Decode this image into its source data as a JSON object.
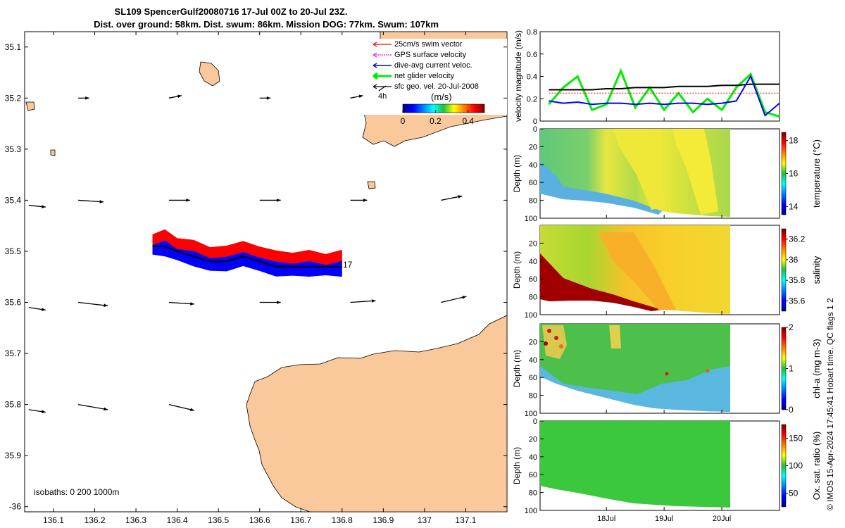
{
  "title": {
    "line1": "SL109 SpencerGulf20080716 17-Jul 00Z to 20-Jul 23Z.",
    "line2": "Dist. over ground: 58km. Dist. swum: 86km. Mission DOG: 77km. Swum: 107km"
  },
  "colors": {
    "land": "#f9c89b",
    "swim": "#ff0000",
    "gps": "#ff00ff",
    "dive_avg": "#0000ff",
    "net": "#00ee00",
    "sfc": "#000000"
  },
  "chart_data": [
    {
      "type": "map",
      "name": "glider-track-map",
      "xlim": [
        136.03,
        137.2
      ],
      "ylim": [
        -36.01,
        -35.07
      ],
      "x_ticks": [
        "136.1",
        "136.2",
        "136.3",
        "136.4",
        "136.5",
        "136.6",
        "136.7",
        "136.8",
        "136.9",
        "137",
        "137.1"
      ],
      "x_tick_values": [
        136.1,
        136.2,
        136.3,
        136.4,
        136.5,
        136.6,
        136.7,
        136.8,
        136.9,
        137.0,
        137.1
      ],
      "y_ticks": [
        "35.1",
        "35.2",
        "35.3",
        "35.4",
        "35.5",
        "35.6",
        "35.7",
        "35.8",
        "35.9",
        "-36"
      ],
      "y_tick_values": [
        -35.1,
        -35.2,
        -35.3,
        -35.4,
        -35.5,
        -35.6,
        -35.7,
        -35.8,
        -35.9,
        -36.0
      ],
      "legend": [
        {
          "label": "25cm/s swim vector",
          "color": "#ff0000"
        },
        {
          "label": "GPS surface velocity",
          "color": "#ff00ff"
        },
        {
          "label": "dive-avg current veloc.",
          "color": "#0000ff"
        },
        {
          "label": "net glider velocity",
          "color": "#00ee00"
        },
        {
          "label": "sfc geo. vel. 20-Jul-2008",
          "color": "#000000"
        }
      ],
      "legend_extra": "4h",
      "colorbar": {
        "label": "(m/s)",
        "range": [
          0,
          0.5
        ],
        "ticks": [
          "0",
          "0.2",
          "0.4"
        ],
        "tick_values": [
          0,
          0.2,
          0.4
        ]
      },
      "track_end_label": "17",
      "isobaths_text": "isobaths: 0   200  1000m",
      "track": {
        "lon": [
          136.34,
          136.37,
          136.4,
          136.44,
          136.48,
          136.52,
          136.56,
          136.6,
          136.64,
          136.68,
          136.72,
          136.76,
          136.8
        ],
        "lat": [
          -35.49,
          -35.49,
          -35.5,
          -35.51,
          -35.52,
          -35.52,
          -35.51,
          -35.52,
          -35.53,
          -35.53,
          -35.53,
          -35.53,
          -35.53
        ]
      },
      "sfc_vectors": [
        {
          "lon": 136.04,
          "lat": -35.41,
          "u": 0.2,
          "v": -0.02
        },
        {
          "lon": 136.04,
          "lat": -35.61,
          "u": 0.2,
          "v": -0.03
        },
        {
          "lon": 136.04,
          "lat": -35.81,
          "u": 0.2,
          "v": -0.03
        },
        {
          "lon": 136.16,
          "lat": -35.2,
          "u": 0.13,
          "v": 0.0
        },
        {
          "lon": 136.16,
          "lat": -35.4,
          "u": 0.3,
          "v": -0.02
        },
        {
          "lon": 136.16,
          "lat": -35.6,
          "u": 0.35,
          "v": -0.04
        },
        {
          "lon": 136.16,
          "lat": -35.8,
          "u": 0.35,
          "v": -0.06
        },
        {
          "lon": 136.38,
          "lat": -35.2,
          "u": 0.15,
          "v": 0.03
        },
        {
          "lon": 136.38,
          "lat": -35.4,
          "u": 0.25,
          "v": 0.0
        },
        {
          "lon": 136.38,
          "lat": -35.6,
          "u": 0.3,
          "v": -0.02
        },
        {
          "lon": 136.38,
          "lat": -35.8,
          "u": 0.3,
          "v": -0.07
        },
        {
          "lon": 136.6,
          "lat": -35.2,
          "u": 0.13,
          "v": 0.0
        },
        {
          "lon": 136.6,
          "lat": -35.4,
          "u": 0.25,
          "v": 0.0
        },
        {
          "lon": 136.6,
          "lat": -35.6,
          "u": 0.25,
          "v": 0.0
        },
        {
          "lon": 136.82,
          "lat": -35.2,
          "u": 0.15,
          "v": 0.03
        },
        {
          "lon": 136.82,
          "lat": -35.4,
          "u": 0.2,
          "v": 0.0
        },
        {
          "lon": 136.82,
          "lat": -35.6,
          "u": 0.3,
          "v": 0.02
        },
        {
          "lon": 137.04,
          "lat": -35.4,
          "u": 0.25,
          "v": 0.05
        },
        {
          "lon": 137.04,
          "lat": -35.6,
          "u": 0.3,
          "v": 0.07
        }
      ]
    },
    {
      "type": "line",
      "name": "velocity-magnitude",
      "ylabel": "velocity magnitude (m/s)",
      "ylim": [
        0,
        0.8
      ],
      "y_ticks": [
        "0",
        "0.2",
        "0.4",
        "0.6",
        "0.8"
      ],
      "y_tick_values": [
        0,
        0.2,
        0.4,
        0.6,
        0.8
      ],
      "x": [
        0,
        0.25,
        0.5,
        0.75,
        1.0,
        1.25,
        1.5,
        1.75,
        2.0,
        2.25,
        2.5,
        2.75,
        3.0,
        3.25,
        3.5,
        3.75,
        4.0
      ],
      "series": [
        {
          "name": "net glider velocity",
          "color": "#00ee00",
          "values": [
            0.15,
            0.3,
            0.4,
            0.1,
            0.15,
            0.45,
            0.12,
            0.3,
            0.1,
            0.25,
            0.08,
            0.2,
            0.1,
            0.3,
            0.42,
            0.08,
            0.04
          ]
        },
        {
          "name": "sfc geo. vel.",
          "color": "#000000",
          "values": [
            0.28,
            0.28,
            0.28,
            0.28,
            0.29,
            0.29,
            0.3,
            0.3,
            0.3,
            0.31,
            0.31,
            0.31,
            0.32,
            0.32,
            0.33,
            0.33,
            0.33
          ]
        },
        {
          "name": "swim",
          "color": "#ff0000",
          "values": [
            0.25,
            0.25,
            0.25,
            0.25,
            0.25,
            0.25,
            0.25,
            0.25,
            0.25,
            0.25,
            0.25,
            0.25,
            0.25,
            0.25,
            0.25,
            0.25,
            0.25
          ]
        },
        {
          "name": "dive-avg current",
          "color": "#0000ff",
          "values": [
            0.18,
            0.16,
            0.17,
            0.15,
            0.16,
            0.16,
            0.15,
            0.16,
            0.15,
            0.16,
            0.16,
            0.15,
            0.16,
            0.18,
            0.4,
            0.05,
            0.16
          ]
        }
      ]
    },
    {
      "type": "heatmap",
      "name": "temperature",
      "ylabel": "Depth (m)",
      "cbar_label": "temperature (°C)",
      "cbar_range": [
        13.5,
        18.5
      ],
      "cbar_ticks": [
        "14",
        "16",
        "18"
      ],
      "cbar_tick_values": [
        14,
        16,
        18
      ],
      "y_ticks": [
        "0",
        "20",
        "40",
        "60",
        "80",
        "100"
      ],
      "y_tick_values": [
        0,
        20,
        40,
        60,
        80,
        100
      ],
      "palette": "jet"
    },
    {
      "type": "heatmap",
      "name": "salinity",
      "ylabel": "Depth (m)",
      "cbar_label": "salinity",
      "cbar_range": [
        35.5,
        36.3
      ],
      "cbar_ticks": [
        "35.6",
        "35.8",
        "36",
        "36.2"
      ],
      "cbar_tick_values": [
        35.6,
        35.8,
        36.0,
        36.2
      ],
      "y_ticks": [
        "20",
        "40",
        "60",
        "80",
        "100"
      ],
      "y_tick_values": [
        20,
        40,
        60,
        80,
        100
      ],
      "palette": "jet"
    },
    {
      "type": "heatmap",
      "name": "chl-a",
      "ylabel": "Depth (m)",
      "cbar_label": "chl-a (mg m-3)",
      "cbar_range": [
        0,
        2
      ],
      "cbar_ticks": [
        "0",
        "1",
        "2"
      ],
      "cbar_tick_values": [
        0,
        1,
        2
      ],
      "y_ticks": [
        "20",
        "40",
        "60",
        "80",
        "100"
      ],
      "y_tick_values": [
        20,
        40,
        60,
        80,
        100
      ],
      "palette": "jet"
    },
    {
      "type": "heatmap",
      "name": "oxygen-saturation",
      "ylabel": "Depth (m)",
      "cbar_label": "Ox. sat. ratio (%)",
      "cbar_range": [
        25,
        175
      ],
      "cbar_ticks": [
        "50",
        "100",
        "150"
      ],
      "cbar_tick_values": [
        50,
        100,
        150
      ],
      "y_ticks": [
        "0",
        "20",
        "40",
        "60",
        "80",
        "100"
      ],
      "y_tick_values": [
        0,
        20,
        40,
        60,
        80,
        100
      ],
      "x_ticks": [
        "18Jul",
        "19Jul",
        "20Jul"
      ],
      "x_tick_values": [
        1,
        2,
        3
      ],
      "xlim": [
        -0.15,
        4.0
      ],
      "palette": "jet"
    }
  ],
  "footer": "© IMOS 15-Apr-2024 17:45:41 Hobart time. QC flags 1  2"
}
